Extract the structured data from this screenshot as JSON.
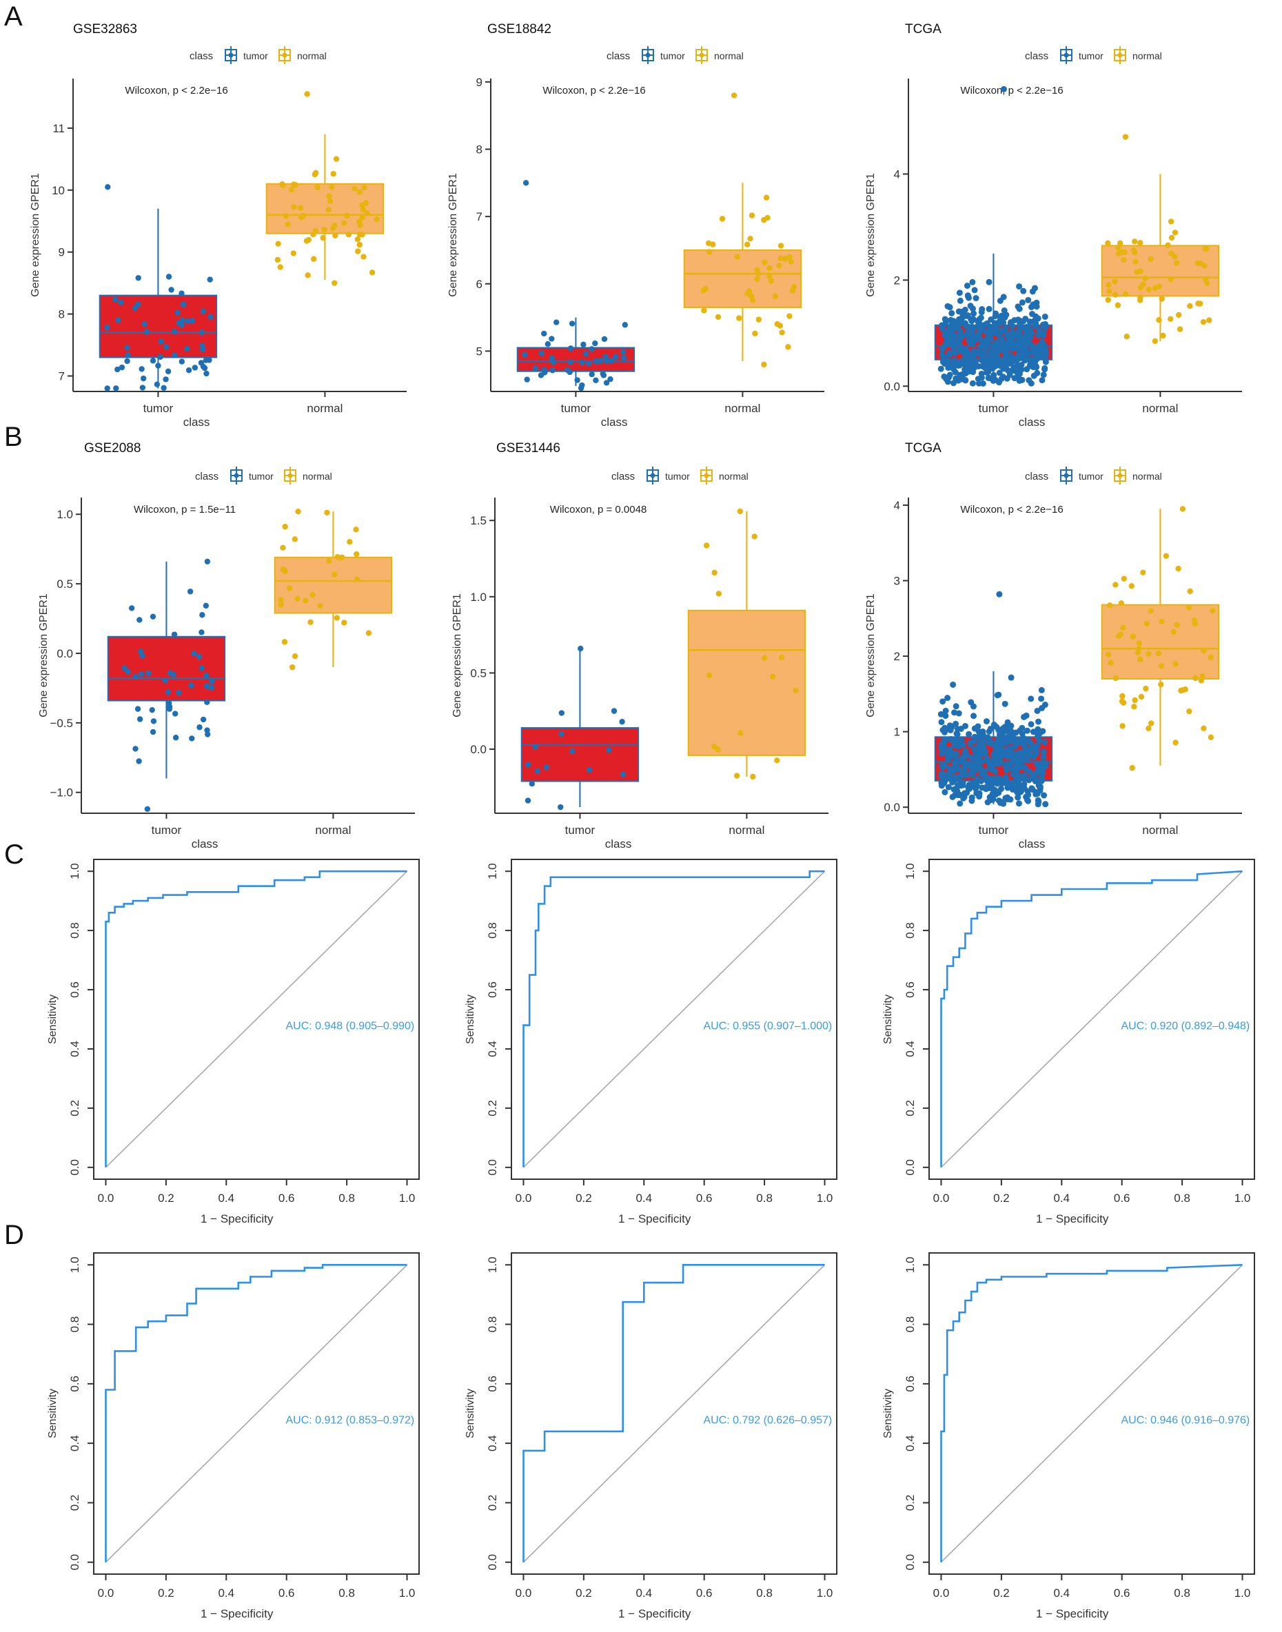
{
  "panel_labels": [
    "A",
    "B",
    "C",
    "D"
  ],
  "colors": {
    "tumor_fill": "#e01f26",
    "tumor_points": "#1f6fb4",
    "normal_fill": "#f8b36b",
    "normal_points": "#e7b40f",
    "normal_line": "#e8b20e",
    "roc": "#2f8fe8",
    "diag": "#a8a8a8",
    "auc_text": "#3a9ae6"
  },
  "legend": {
    "title": "class",
    "tumor": "tumor",
    "normal": "normal"
  },
  "chart_data": [
    {
      "type": "box",
      "panel": "A",
      "title": "GSE32863",
      "categories": [
        "tumor",
        "normal"
      ],
      "xlabel": "class",
      "ylabel": "Gene expression GPER1",
      "ylim": [
        6.75,
        11.8
      ],
      "yticks": [
        7,
        8,
        9,
        10,
        11
      ],
      "annotation": "Wilcoxon, p < 2.2e−16",
      "boxes": [
        {
          "q1": 7.3,
          "median": 7.7,
          "q3": 8.3,
          "lo": 6.8,
          "hi": 9.7,
          "n": 58,
          "min": 6.8,
          "max": 10.05
        },
        {
          "q1": 9.3,
          "median": 9.6,
          "q3": 10.1,
          "lo": 8.55,
          "hi": 10.9,
          "n": 58,
          "min": 8.5,
          "max": 11.55
        }
      ]
    },
    {
      "type": "box",
      "panel": "A",
      "title": "GSE18842",
      "categories": [
        "tumor",
        "normal"
      ],
      "xlabel": "class",
      "ylabel": "Gene expression GPER1",
      "ylim": [
        4.4,
        9.05
      ],
      "yticks": [
        5,
        6,
        7,
        8,
        9
      ],
      "annotation": "Wilcoxon, p < 2.2e−16",
      "boxes": [
        {
          "q1": 4.7,
          "median": 4.85,
          "q3": 5.05,
          "lo": 4.48,
          "hi": 5.5,
          "n": 46,
          "min": 4.45,
          "max": 7.5
        },
        {
          "q1": 5.65,
          "median": 6.15,
          "q3": 6.5,
          "lo": 4.85,
          "hi": 7.5,
          "n": 45,
          "min": 4.8,
          "max": 8.8
        }
      ]
    },
    {
      "type": "box",
      "panel": "A",
      "title": "TCGA",
      "categories": [
        "tumor",
        "normal"
      ],
      "xlabel": "class",
      "ylabel": "Gene expression GPER1",
      "ylim": [
        -0.1,
        5.8
      ],
      "yticks": [
        0,
        2,
        4
      ],
      "annotation": "Wilcoxon, p < 2.2e−16",
      "boxes": [
        {
          "q1": 0.5,
          "median": 0.75,
          "q3": 1.15,
          "lo": 0.05,
          "hi": 2.5,
          "n": 500,
          "min": 0.05,
          "max": 5.6
        },
        {
          "q1": 1.7,
          "median": 2.05,
          "q3": 2.65,
          "lo": 0.85,
          "hi": 4.0,
          "n": 59,
          "min": 0.85,
          "max": 4.7
        }
      ]
    },
    {
      "type": "box",
      "panel": "B",
      "title": "GSE2088",
      "categories": [
        "tumor",
        "normal"
      ],
      "xlabel": "class",
      "ylabel": "Gene expression GPER1",
      "ylim": [
        -1.15,
        1.12
      ],
      "yticks": [
        -1.0,
        -0.5,
        0.0,
        0.5,
        1.0
      ],
      "annotation": "Wilcoxon, p = 1.5e−11",
      "boxes": [
        {
          "q1": -0.34,
          "median": -0.18,
          "q3": 0.12,
          "lo": -0.9,
          "hi": 0.66,
          "n": 48,
          "min": -1.12,
          "max": 0.66
        },
        {
          "q1": 0.29,
          "median": 0.52,
          "q3": 0.69,
          "lo": -0.1,
          "hi": 1.02,
          "n": 30,
          "min": -0.1,
          "max": 1.02
        }
      ]
    },
    {
      "type": "box",
      "panel": "B",
      "title": "GSE31446",
      "categories": [
        "tumor",
        "normal"
      ],
      "xlabel": "class",
      "ylabel": "Gene expression GPER1",
      "ylim": [
        -0.42,
        1.65
      ],
      "yticks": [
        0.0,
        0.5,
        1.0,
        1.5
      ],
      "annotation": "Wilcoxon, p = 0.0048",
      "boxes": [
        {
          "q1": -0.21,
          "median": 0.03,
          "q3": 0.14,
          "lo": -0.38,
          "hi": 0.65,
          "n": 16,
          "min": -0.38,
          "max": 0.66
        },
        {
          "q1": -0.04,
          "median": 0.65,
          "q3": 0.91,
          "lo": -0.18,
          "hi": 1.56,
          "n": 16,
          "min": -0.18,
          "max": 1.56
        }
      ]
    },
    {
      "type": "box",
      "panel": "B",
      "title": "TCGA",
      "categories": [
        "tumor",
        "normal"
      ],
      "xlabel": "class",
      "ylabel": "Gene expression GPER1",
      "ylim": [
        -0.08,
        4.1
      ],
      "yticks": [
        0,
        1,
        2,
        3,
        4
      ],
      "annotation": "Wilcoxon, p < 2.2e−16",
      "boxes": [
        {
          "q1": 0.35,
          "median": 0.6,
          "q3": 0.93,
          "lo": 0.04,
          "hi": 1.8,
          "n": 500,
          "min": 0.04,
          "max": 2.82
        },
        {
          "q1": 1.7,
          "median": 2.1,
          "q3": 2.68,
          "lo": 0.55,
          "hi": 3.95,
          "n": 59,
          "min": 0.52,
          "max": 3.95
        }
      ]
    },
    {
      "type": "line",
      "panel": "C",
      "subtype": "roc",
      "xlabel": "1 − Specificity",
      "ylabel": "Sensitivity",
      "xlim": [
        -0.04,
        1.04
      ],
      "ylim": [
        -0.04,
        1.04
      ],
      "xticks": [
        0.0,
        0.2,
        0.4,
        0.6,
        0.8,
        1.0
      ],
      "yticks": [
        0.0,
        0.2,
        0.4,
        0.6,
        0.8,
        1.0
      ],
      "annotation": "AUC: 0.948 (0.905–0.990)",
      "x": [
        0,
        0,
        0.01,
        0.01,
        0.03,
        0.03,
        0.06,
        0.06,
        0.09,
        0.09,
        0.14,
        0.14,
        0.19,
        0.19,
        0.27,
        0.27,
        0.44,
        0.44,
        0.56,
        0.56,
        0.66,
        0.66,
        0.71,
        0.71,
        1.0
      ],
      "y": [
        0,
        0.83,
        0.83,
        0.86,
        0.86,
        0.88,
        0.88,
        0.89,
        0.89,
        0.9,
        0.9,
        0.91,
        0.91,
        0.92,
        0.92,
        0.93,
        0.93,
        0.95,
        0.95,
        0.97,
        0.97,
        0.98,
        0.98,
        1.0,
        1.0
      ]
    },
    {
      "type": "line",
      "panel": "C",
      "subtype": "roc",
      "xlabel": "1 − Specificity",
      "ylabel": "Sensitivity",
      "xlim": [
        -0.04,
        1.04
      ],
      "ylim": [
        -0.04,
        1.04
      ],
      "xticks": [
        0.0,
        0.2,
        0.4,
        0.6,
        0.8,
        1.0
      ],
      "yticks": [
        0.0,
        0.2,
        0.4,
        0.6,
        0.8,
        1.0
      ],
      "annotation": "AUC: 0.955 (0.907–1.000)",
      "x": [
        0,
        0,
        0.02,
        0.02,
        0.04,
        0.04,
        0.05,
        0.05,
        0.07,
        0.07,
        0.09,
        0.09,
        0.12,
        0.12,
        0.95,
        0.95,
        1.0
      ],
      "y": [
        0,
        0.48,
        0.48,
        0.65,
        0.65,
        0.8,
        0.8,
        0.89,
        0.89,
        0.95,
        0.95,
        0.98,
        0.98,
        0.98,
        0.98,
        1.0,
        1.0
      ]
    },
    {
      "type": "line",
      "panel": "C",
      "subtype": "roc",
      "xlabel": "1 − Specificity",
      "ylabel": "Sensitivity",
      "xlim": [
        -0.04,
        1.04
      ],
      "ylim": [
        -0.04,
        1.04
      ],
      "xticks": [
        0.0,
        0.2,
        0.4,
        0.6,
        0.8,
        1.0
      ],
      "yticks": [
        0.0,
        0.2,
        0.4,
        0.6,
        0.8,
        1.0
      ],
      "annotation": "AUC: 0.920 (0.892–0.948)",
      "x": [
        0,
        0,
        0.01,
        0.01,
        0.02,
        0.02,
        0.04,
        0.04,
        0.06,
        0.06,
        0.08,
        0.08,
        0.1,
        0.1,
        0.12,
        0.12,
        0.15,
        0.15,
        0.2,
        0.2,
        0.3,
        0.3,
        0.4,
        0.4,
        0.55,
        0.55,
        0.7,
        0.7,
        0.85,
        0.85,
        1.0
      ],
      "y": [
        0,
        0.57,
        0.57,
        0.6,
        0.6,
        0.68,
        0.68,
        0.71,
        0.71,
        0.74,
        0.74,
        0.79,
        0.79,
        0.84,
        0.84,
        0.86,
        0.86,
        0.88,
        0.88,
        0.9,
        0.9,
        0.92,
        0.92,
        0.94,
        0.94,
        0.96,
        0.96,
        0.97,
        0.97,
        0.99,
        1.0
      ]
    },
    {
      "type": "line",
      "panel": "D",
      "subtype": "roc",
      "xlabel": "1 − Specificity",
      "ylabel": "Sensitivity",
      "xlim": [
        -0.04,
        1.04
      ],
      "ylim": [
        -0.04,
        1.04
      ],
      "xticks": [
        0.0,
        0.2,
        0.4,
        0.6,
        0.8,
        1.0
      ],
      "yticks": [
        0.0,
        0.2,
        0.4,
        0.6,
        0.8,
        1.0
      ],
      "annotation": "AUC: 0.912 (0.853–0.972)",
      "x": [
        0,
        0,
        0.03,
        0.03,
        0.1,
        0.1,
        0.14,
        0.14,
        0.2,
        0.2,
        0.27,
        0.27,
        0.3,
        0.3,
        0.44,
        0.44,
        0.48,
        0.48,
        0.55,
        0.55,
        0.66,
        0.66,
        0.72,
        0.72,
        1.0
      ],
      "y": [
        0,
        0.58,
        0.58,
        0.71,
        0.71,
        0.79,
        0.79,
        0.81,
        0.81,
        0.83,
        0.83,
        0.87,
        0.87,
        0.92,
        0.92,
        0.94,
        0.94,
        0.96,
        0.96,
        0.98,
        0.98,
        0.99,
        0.99,
        1.0,
        1.0
      ]
    },
    {
      "type": "line",
      "panel": "D",
      "subtype": "roc",
      "xlabel": "1 − Specificity",
      "ylabel": "Sensitivity",
      "xlim": [
        -0.04,
        1.04
      ],
      "ylim": [
        -0.04,
        1.04
      ],
      "xticks": [
        0.0,
        0.2,
        0.4,
        0.6,
        0.8,
        1.0
      ],
      "yticks": [
        0.0,
        0.2,
        0.4,
        0.6,
        0.8,
        1.0
      ],
      "annotation": "AUC: 0.792 (0.626–0.957)",
      "x": [
        0,
        0,
        0.07,
        0.07,
        0.33,
        0.33,
        0.4,
        0.4,
        0.53,
        0.53,
        1.0
      ],
      "y": [
        0,
        0.375,
        0.375,
        0.44,
        0.44,
        0.875,
        0.875,
        0.94,
        0.94,
        1.0,
        1.0
      ]
    },
    {
      "type": "line",
      "panel": "D",
      "subtype": "roc",
      "xlabel": "1 − Specificity",
      "ylabel": "Sensitivity",
      "xlim": [
        -0.04,
        1.04
      ],
      "ylim": [
        -0.04,
        1.04
      ],
      "xticks": [
        0.0,
        0.2,
        0.4,
        0.6,
        0.8,
        1.0
      ],
      "yticks": [
        0.0,
        0.2,
        0.4,
        0.6,
        0.8,
        1.0
      ],
      "annotation": "AUC: 0.946 (0.916–0.976)",
      "x": [
        0,
        0,
        0.01,
        0.01,
        0.02,
        0.02,
        0.04,
        0.04,
        0.06,
        0.06,
        0.08,
        0.08,
        0.1,
        0.1,
        0.12,
        0.12,
        0.15,
        0.15,
        0.2,
        0.2,
        0.35,
        0.35,
        0.55,
        0.55,
        0.75,
        0.75,
        1.0
      ],
      "y": [
        0,
        0.44,
        0.44,
        0.63,
        0.63,
        0.78,
        0.78,
        0.81,
        0.81,
        0.84,
        0.84,
        0.88,
        0.88,
        0.91,
        0.91,
        0.94,
        0.94,
        0.95,
        0.95,
        0.96,
        0.96,
        0.97,
        0.97,
        0.98,
        0.98,
        0.99,
        1.0
      ]
    }
  ]
}
